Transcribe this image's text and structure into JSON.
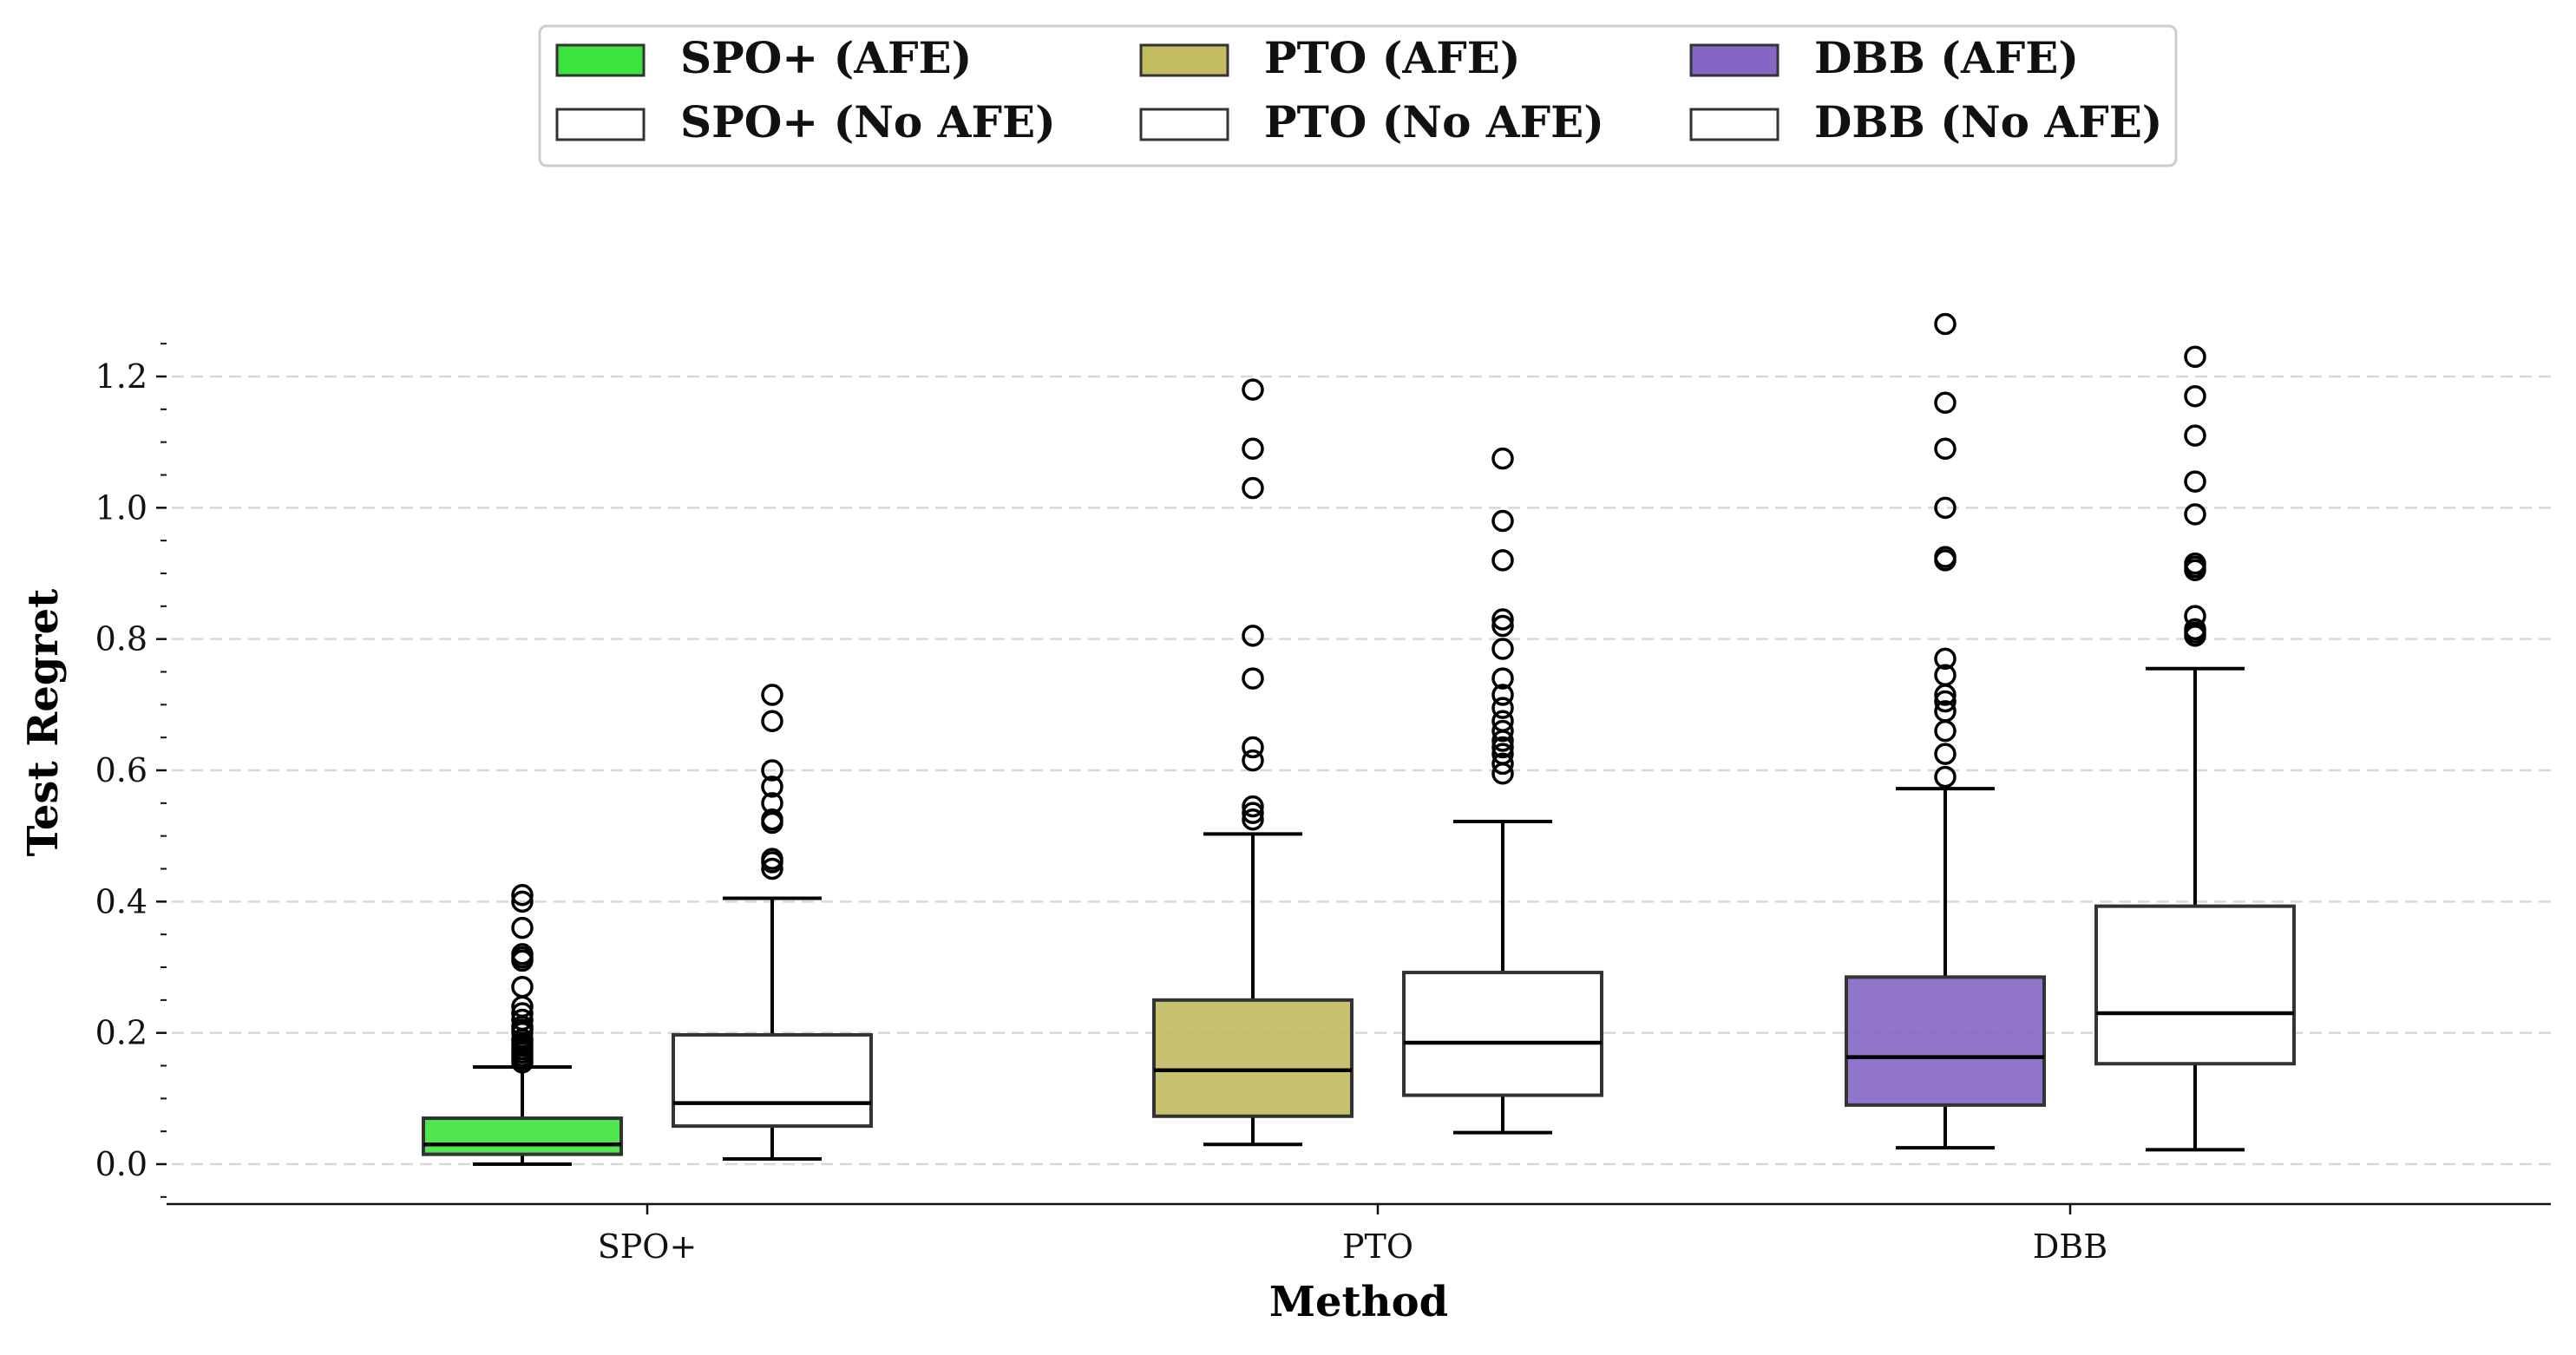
{
  "chart_data": {
    "type": "boxplot",
    "title": "",
    "xlabel": "Method",
    "ylabel": "Test Regret",
    "ylim": [
      -0.06,
      1.31
    ],
    "yticks": [
      0.0,
      0.2,
      0.4,
      0.6,
      0.8,
      1.0,
      1.2
    ],
    "ytick_labels": [
      "0.0",
      "0.2",
      "0.4",
      "0.6",
      "0.8",
      "1.0",
      "1.2"
    ],
    "grid": "y-dashed",
    "legend_position": "top-center",
    "categories": [
      "SPO+",
      "PTO",
      "DBB"
    ],
    "legend": [
      {
        "label": "SPO+ (AFE)",
        "color": "#3de33d"
      },
      {
        "label": "PTO (AFE)",
        "color": "#c2bb60"
      },
      {
        "label": "DBB (AFE)",
        "color": "#8466c4"
      },
      {
        "label": "SPO+ (No AFE)",
        "color": "#ffffff"
      },
      {
        "label": "PTO (No AFE)",
        "color": "#ffffff"
      },
      {
        "label": "DBB (No AFE)",
        "color": "#ffffff"
      }
    ],
    "series": [
      {
        "name": "AFE",
        "boxes": [
          {
            "category": "SPO+",
            "color": "#3de33d",
            "whisker_low": 0.0,
            "q1": 0.015,
            "median": 0.03,
            "q3": 0.07,
            "whisker_high": 0.148,
            "outliers": [
              0.155,
              0.16,
              0.165,
              0.17,
              0.175,
              0.18,
              0.185,
              0.19,
              0.2,
              0.205,
              0.21,
              0.22,
              0.23,
              0.24,
              0.27,
              0.31,
              0.315,
              0.32,
              0.36,
              0.4,
              0.41
            ]
          },
          {
            "category": "PTO",
            "color": "#c2bb60",
            "whisker_low": 0.03,
            "q1": 0.073,
            "median": 0.143,
            "q3": 0.25,
            "whisker_high": 0.503,
            "outliers": [
              0.525,
              0.535,
              0.545,
              0.615,
              0.635,
              0.74,
              0.805,
              1.03,
              1.09,
              1.18
            ]
          },
          {
            "category": "DBB",
            "color": "#8466c4",
            "whisker_low": 0.025,
            "q1": 0.09,
            "median": 0.163,
            "q3": 0.285,
            "whisker_high": 0.572,
            "outliers": [
              0.59,
              0.625,
              0.66,
              0.69,
              0.705,
              0.715,
              0.745,
              0.77,
              0.92,
              0.925,
              1.0,
              1.09,
              1.16,
              1.28
            ]
          }
        ]
      },
      {
        "name": "No AFE",
        "boxes": [
          {
            "category": "SPO+",
            "color": "#ffffff",
            "whisker_low": 0.008,
            "q1": 0.058,
            "median": 0.093,
            "q3": 0.197,
            "whisker_high": 0.405,
            "outliers": [
              0.45,
              0.46,
              0.465,
              0.52,
              0.525,
              0.55,
              0.575,
              0.6,
              0.675,
              0.715
            ]
          },
          {
            "category": "PTO",
            "color": "#ffffff",
            "whisker_low": 0.048,
            "q1": 0.105,
            "median": 0.185,
            "q3": 0.292,
            "whisker_high": 0.522,
            "outliers": [
              0.595,
              0.61,
              0.625,
              0.635,
              0.645,
              0.66,
              0.675,
              0.695,
              0.715,
              0.74,
              0.785,
              0.82,
              0.83,
              0.92,
              0.98,
              1.075
            ]
          },
          {
            "category": "DBB",
            "color": "#ffffff",
            "whisker_low": 0.022,
            "q1": 0.153,
            "median": 0.23,
            "q3": 0.393,
            "whisker_high": 0.755,
            "outliers": [
              0.805,
              0.81,
              0.815,
              0.835,
              0.905,
              0.91,
              0.915,
              0.99,
              1.04,
              1.11,
              1.17,
              1.23
            ]
          }
        ]
      }
    ]
  }
}
